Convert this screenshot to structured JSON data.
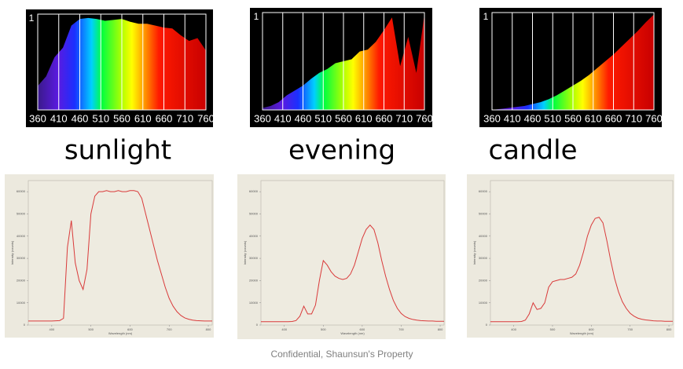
{
  "chart_data": [
    {
      "type": "spectrum",
      "x": [
        360,
        380,
        400,
        420,
        440,
        460,
        480,
        500,
        520,
        540,
        560,
        580,
        600,
        620,
        640,
        660,
        680,
        700,
        720,
        740,
        760
      ],
      "values": [
        0.25,
        0.35,
        0.55,
        0.65,
        0.88,
        0.95,
        0.96,
        0.95,
        0.93,
        0.94,
        0.95,
        0.92,
        0.9,
        0.9,
        0.88,
        0.86,
        0.85,
        0.78,
        0.72,
        0.75,
        0.62
      ],
      "xlim": [
        360,
        760
      ],
      "xticks": [
        360,
        410,
        460,
        510,
        560,
        610,
        660,
        710,
        760
      ],
      "ylim": [
        0,
        1
      ],
      "yticks": [
        1
      ],
      "grid": true
    },
    {
      "type": "spectrum",
      "x": [
        360,
        380,
        400,
        420,
        440,
        460,
        480,
        500,
        520,
        540,
        560,
        580,
        600,
        620,
        640,
        660,
        680,
        700,
        720,
        740,
        760
      ],
      "values": [
        0.02,
        0.04,
        0.08,
        0.15,
        0.2,
        0.25,
        0.32,
        0.38,
        0.42,
        0.48,
        0.5,
        0.52,
        0.6,
        0.62,
        0.7,
        0.82,
        0.95,
        0.45,
        0.75,
        0.38,
        0.98
      ],
      "xlim": [
        360,
        760
      ],
      "xticks": [
        360,
        410,
        460,
        510,
        560,
        610,
        660,
        710,
        760
      ],
      "ylim": [
        0,
        1
      ],
      "yticks": [
        1
      ],
      "grid": true
    },
    {
      "type": "spectrum",
      "x": [
        360,
        380,
        400,
        420,
        440,
        460,
        480,
        500,
        520,
        540,
        560,
        580,
        600,
        620,
        640,
        660,
        680,
        700,
        720,
        740,
        760
      ],
      "values": [
        0,
        0.01,
        0.02,
        0.03,
        0.04,
        0.06,
        0.08,
        0.11,
        0.15,
        0.2,
        0.25,
        0.3,
        0.36,
        0.43,
        0.5,
        0.57,
        0.65,
        0.73,
        0.81,
        0.9,
        0.98
      ],
      "xlim": [
        360,
        760
      ],
      "xticks": [
        360,
        410,
        460,
        510,
        560,
        610,
        660,
        710,
        760
      ],
      "ylim": [
        0,
        1
      ],
      "yticks": [
        1
      ],
      "grid": true
    },
    {
      "type": "line",
      "xlabel": "Wavelength (nm)",
      "ylabel": "Intensity (counts)",
      "color": "#d93a3a",
      "x": [
        340,
        350,
        360,
        370,
        380,
        390,
        400,
        410,
        420,
        430,
        440,
        450,
        460,
        470,
        480,
        490,
        500,
        510,
        520,
        530,
        540,
        550,
        560,
        570,
        580,
        590,
        600,
        610,
        620,
        630,
        640,
        650,
        660,
        670,
        680,
        690,
        700,
        710,
        720,
        730,
        740,
        750,
        760,
        770,
        780,
        790,
        800,
        810
      ],
      "values": [
        1800,
        1800,
        1800,
        1800,
        1800,
        1800,
        1800,
        1900,
        2000,
        3000,
        35000,
        47000,
        28000,
        20000,
        16000,
        25000,
        50000,
        58000,
        60000,
        60000,
        60500,
        60000,
        60000,
        60500,
        60000,
        60000,
        60500,
        60500,
        60000,
        57000,
        50000,
        43000,
        36000,
        29000,
        23000,
        17000,
        12000,
        8500,
        6000,
        4300,
        3200,
        2600,
        2200,
        2000,
        1900,
        1800,
        1800,
        1800
      ],
      "xlim": [
        340,
        810
      ],
      "xticks": [
        400,
        500,
        600,
        700,
        800
      ],
      "ylim": [
        0,
        65000
      ],
      "yticks": [
        0,
        10000,
        20000,
        30000,
        40000,
        50000,
        60000
      ]
    },
    {
      "type": "line",
      "xlabel": "Wavelength (nm)",
      "ylabel": "Intensity (counts)",
      "color": "#d93a3a",
      "x": [
        340,
        350,
        360,
        370,
        380,
        390,
        400,
        410,
        420,
        430,
        440,
        450,
        460,
        470,
        480,
        490,
        500,
        510,
        520,
        530,
        540,
        550,
        560,
        570,
        580,
        590,
        600,
        610,
        620,
        630,
        640,
        650,
        660,
        670,
        680,
        690,
        700,
        710,
        720,
        730,
        740,
        750,
        760,
        770,
        780,
        790,
        800,
        810
      ],
      "values": [
        1500,
        1500,
        1500,
        1500,
        1500,
        1500,
        1500,
        1500,
        1600,
        2000,
        4000,
        8500,
        5000,
        5000,
        9000,
        20000,
        29000,
        27000,
        24000,
        22000,
        21000,
        20500,
        21000,
        23000,
        27000,
        33000,
        39000,
        43000,
        45000,
        43000,
        37000,
        29000,
        22000,
        16000,
        11000,
        7500,
        5200,
        3800,
        3000,
        2500,
        2200,
        2000,
        1900,
        1800,
        1800,
        1700,
        1700,
        1700
      ],
      "xlim": [
        340,
        810
      ],
      "xticks": [
        400,
        500,
        600,
        700,
        800
      ],
      "ylim": [
        0,
        65000
      ],
      "yticks": [
        0,
        10000,
        20000,
        30000,
        40000,
        50000,
        60000
      ]
    },
    {
      "type": "line",
      "xlabel": "Wavelength (nm)",
      "ylabel": "Intensity (counts)",
      "color": "#d93a3a",
      "x": [
        340,
        350,
        360,
        370,
        380,
        390,
        400,
        410,
        420,
        430,
        440,
        450,
        460,
        470,
        480,
        490,
        500,
        510,
        520,
        530,
        540,
        550,
        560,
        570,
        580,
        590,
        600,
        610,
        620,
        630,
        640,
        650,
        660,
        670,
        680,
        690,
        700,
        710,
        720,
        730,
        740,
        750,
        760,
        770,
        780,
        790,
        800,
        810
      ],
      "values": [
        1500,
        1500,
        1500,
        1500,
        1500,
        1500,
        1500,
        1500,
        1600,
        2200,
        5000,
        10000,
        7000,
        7500,
        10000,
        17000,
        19500,
        20000,
        20500,
        20500,
        21000,
        21500,
        23000,
        27000,
        33000,
        40000,
        45000,
        48000,
        48500,
        46000,
        38000,
        29000,
        21000,
        15000,
        10500,
        7500,
        5300,
        4000,
        3100,
        2600,
        2300,
        2100,
        1900,
        1800,
        1800,
        1700,
        1700,
        1700
      ],
      "xlim": [
        340,
        810
      ],
      "xticks": [
        400,
        500,
        600,
        700,
        800
      ],
      "ylim": [
        0,
        65000
      ],
      "yticks": [
        0,
        10000,
        20000,
        30000,
        40000,
        50000,
        60000
      ]
    }
  ],
  "captions": [
    "sunlight",
    "evening",
    "candle"
  ],
  "footer": "Confidential, Shaunsun's Property"
}
